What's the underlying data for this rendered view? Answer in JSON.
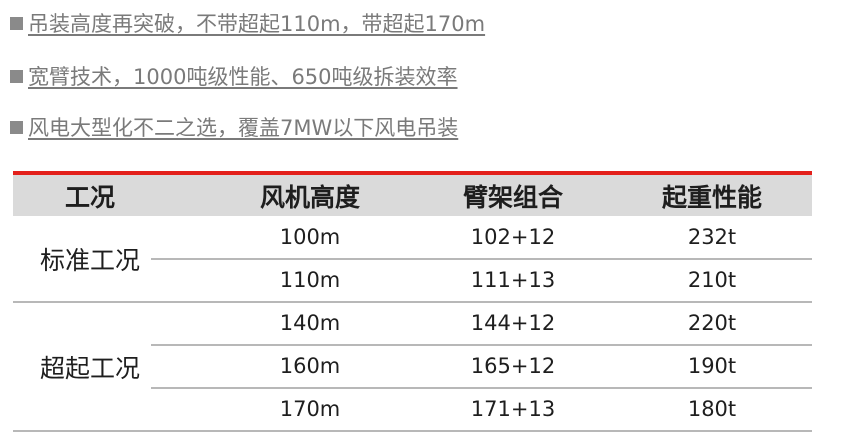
{
  "bullets": [
    "吊装高度再突破，不带超起110m，带超起170m",
    "宽臂技术，1000吨级性能、650吨级拆装效率",
    "风电大型化不二之选，覆盖7MW以下风电吊装"
  ],
  "table": {
    "headers": [
      "工况",
      "风机高度",
      "臂架组合",
      "起重性能"
    ],
    "groups": [
      {
        "label": "标准工况",
        "rows": [
          [
            "100m",
            "102+12",
            "232t"
          ],
          [
            "110m",
            "111+13",
            "210t"
          ]
        ]
      },
      {
        "label": "超起工况",
        "rows": [
          [
            "140m",
            "144+12",
            "220t"
          ],
          [
            "160m",
            "165+12",
            "190t"
          ],
          [
            "170m",
            "171+13",
            "180t"
          ]
        ]
      }
    ]
  },
  "colors": {
    "accent": "#e3201b",
    "header_bg": "#dadada"
  }
}
